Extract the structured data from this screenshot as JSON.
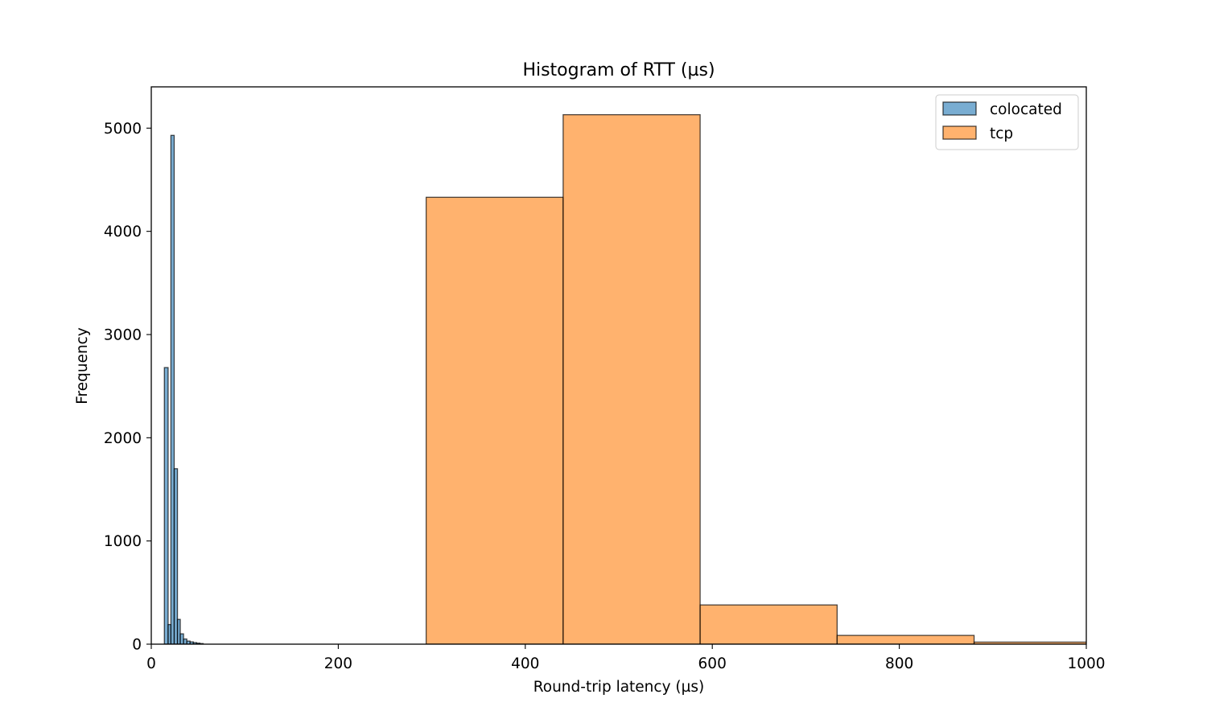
{
  "chart_data": {
    "type": "bar",
    "title": "Histogram of RTT (µs)",
    "xlabel": "Round-trip latency (µs)",
    "ylabel": "Frequency",
    "xlim": [
      0,
      1000
    ],
    "ylim": [
      0,
      5400
    ],
    "grid": false,
    "legend_position": "top-right",
    "x_ticks": [
      0,
      200,
      400,
      600,
      800,
      1000
    ],
    "y_ticks": [
      0,
      1000,
      2000,
      3000,
      4000,
      5000
    ],
    "series": [
      {
        "name": "colocated",
        "color": "#1f77b4",
        "bins": [
          {
            "x0": 14,
            "x1": 18,
            "value": 2680
          },
          {
            "x0": 18,
            "x1": 21,
            "value": 190
          },
          {
            "x0": 21,
            "x1": 24.5,
            "value": 4930
          },
          {
            "x0": 24.5,
            "x1": 28,
            "value": 1700
          },
          {
            "x0": 28,
            "x1": 31,
            "value": 240
          },
          {
            "x0": 31,
            "x1": 34.5,
            "value": 100
          },
          {
            "x0": 34.5,
            "x1": 38,
            "value": 50
          },
          {
            "x0": 38,
            "x1": 41.5,
            "value": 30
          },
          {
            "x0": 41.5,
            "x1": 45,
            "value": 22
          },
          {
            "x0": 45,
            "x1": 48.5,
            "value": 15
          },
          {
            "x0": 48.5,
            "x1": 52,
            "value": 10
          },
          {
            "x0": 52,
            "x1": 55.5,
            "value": 6
          }
        ]
      },
      {
        "name": "tcp",
        "color": "#ff7f0e",
        "bins": [
          {
            "x0": 294,
            "x1": 440.5,
            "value": 4330
          },
          {
            "x0": 440.5,
            "x1": 587,
            "value": 5130
          },
          {
            "x0": 587,
            "x1": 733.5,
            "value": 380
          },
          {
            "x0": 733.5,
            "x1": 880,
            "value": 85
          },
          {
            "x0": 880,
            "x1": 1026.5,
            "value": 20
          }
        ]
      }
    ]
  }
}
